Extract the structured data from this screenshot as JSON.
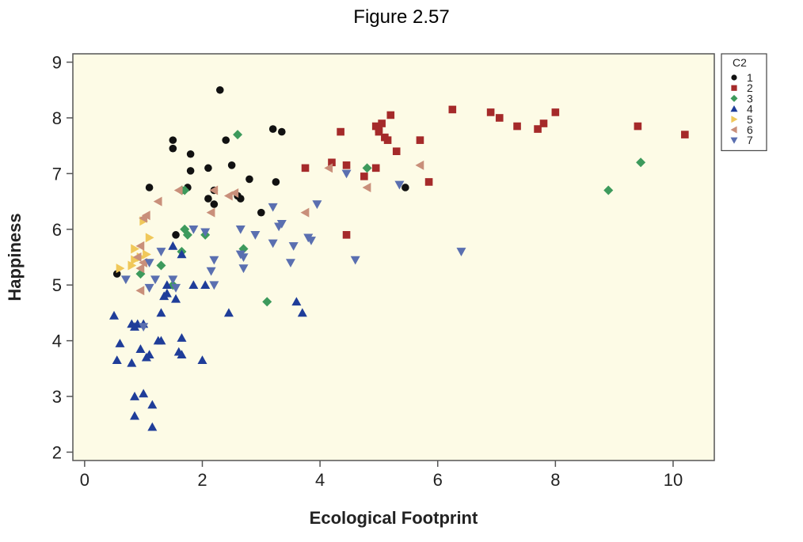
{
  "figure_label": "Figure 2.57",
  "chart_data": {
    "type": "scatter",
    "xlabel": "Ecological Footprint",
    "ylabel": "Happiness",
    "xlim": [
      -0.2,
      10.7
    ],
    "ylim": [
      1.85,
      9.15
    ],
    "xticks": [
      0,
      2,
      4,
      6,
      8,
      10
    ],
    "yticks": [
      2,
      3,
      4,
      5,
      6,
      7,
      8,
      9
    ],
    "grid": false,
    "plot_background": "#fdfbe6",
    "legend": {
      "title": "C2",
      "position": "top-right"
    },
    "series": [
      {
        "name": "1",
        "marker": "circle",
        "color": "#111111",
        "x": [
          2.3,
          1.5,
          1.5,
          1.8,
          1.8,
          2.4,
          2.1,
          2.5,
          3.2,
          3.35,
          1.1,
          1.75,
          2.2,
          2.1,
          2.8,
          3.25,
          2.2,
          2.6,
          2.65,
          1.65,
          1.55,
          3.0,
          5.45,
          0.55
        ],
        "y": [
          8.5,
          7.6,
          7.45,
          7.35,
          7.05,
          7.6,
          7.1,
          7.15,
          7.8,
          7.75,
          6.75,
          6.75,
          6.7,
          6.55,
          6.9,
          6.85,
          6.45,
          6.6,
          6.55,
          6.7,
          5.9,
          6.3,
          6.75,
          5.2
        ]
      },
      {
        "name": "2",
        "marker": "square",
        "color": "#a52a2a",
        "x": [
          6.25,
          6.9,
          7.05,
          7.35,
          7.7,
          7.8,
          8.0,
          9.4,
          10.2,
          5.2,
          4.95,
          5.0,
          5.05,
          5.1,
          5.0,
          5.15,
          5.3,
          5.7,
          4.35,
          3.75,
          4.2,
          4.45,
          4.95,
          4.75,
          5.85,
          4.45
        ],
        "y": [
          8.15,
          8.1,
          8.0,
          7.85,
          7.8,
          7.9,
          8.1,
          7.85,
          7.7,
          8.05,
          7.85,
          7.75,
          7.9,
          7.65,
          7.8,
          7.6,
          7.4,
          7.6,
          7.75,
          7.1,
          7.2,
          7.15,
          7.1,
          6.95,
          6.85,
          5.9
        ]
      },
      {
        "name": "3",
        "marker": "diamond",
        "color": "#3d9a5c",
        "x": [
          2.6,
          1.65,
          1.7,
          4.8,
          9.45,
          8.9,
          2.05,
          1.7,
          1.75,
          2.7,
          1.65,
          1.3,
          1.5,
          0.95,
          3.1
        ],
        "y": [
          7.7,
          6.7,
          6.7,
          7.1,
          7.2,
          6.7,
          5.9,
          6.0,
          5.9,
          5.65,
          5.6,
          5.35,
          5.0,
          5.2,
          4.7
        ]
      },
      {
        "name": "4",
        "marker": "triangle-up",
        "color": "#1f3d99",
        "x": [
          1.5,
          1.65,
          1.85,
          2.05,
          1.4,
          1.4,
          1.35,
          1.55,
          1.3,
          1.25,
          1.65,
          1.3,
          1.6,
          2.45,
          3.6,
          3.7,
          0.5,
          0.8,
          0.9,
          0.85,
          1.0,
          0.6,
          0.95,
          1.1,
          1.05,
          0.55,
          0.8,
          2.0,
          1.65,
          0.85,
          1.0,
          1.15,
          0.85,
          1.15
        ],
        "y": [
          5.7,
          5.55,
          5.0,
          5.0,
          5.0,
          4.85,
          4.8,
          4.75,
          4.5,
          4.0,
          4.05,
          4.0,
          3.8,
          4.5,
          4.7,
          4.5,
          4.45,
          4.3,
          4.3,
          4.25,
          4.3,
          3.95,
          3.85,
          3.75,
          3.7,
          3.65,
          3.6,
          3.65,
          3.75,
          3.0,
          3.05,
          2.85,
          2.65,
          2.45
        ]
      },
      {
        "name": "5",
        "marker": "triangle-right",
        "color": "#f0c85a",
        "x": [
          1.0,
          1.1,
          0.85,
          0.85,
          0.95,
          0.6,
          0.8,
          1.05
        ],
        "y": [
          6.15,
          5.85,
          5.65,
          5.45,
          5.5,
          5.3,
          5.35,
          5.55
        ]
      },
      {
        "name": "6",
        "marker": "triangle-left",
        "color": "#c98f7a",
        "x": [
          4.15,
          5.7,
          2.55,
          2.45,
          2.2,
          2.15,
          1.25,
          1.05,
          1.0,
          0.95,
          0.9,
          0.95,
          0.95,
          1.0,
          3.75,
          4.8,
          1.6
        ],
        "y": [
          7.1,
          7.15,
          6.65,
          6.6,
          6.7,
          6.3,
          6.5,
          6.25,
          6.2,
          5.7,
          5.5,
          5.3,
          4.9,
          5.4,
          6.3,
          6.75,
          6.7
        ]
      },
      {
        "name": "7",
        "marker": "triangle-down",
        "color": "#5a6fb0",
        "x": [
          4.45,
          5.35,
          3.95,
          3.2,
          3.35,
          3.3,
          2.65,
          2.9,
          2.7,
          3.2,
          3.55,
          3.5,
          3.8,
          3.85,
          4.6,
          6.4,
          2.05,
          1.85,
          2.2,
          2.65,
          2.7,
          2.15,
          2.2,
          1.3,
          1.5,
          1.55,
          1.1,
          1.2,
          1.1,
          1.0,
          0.7
        ],
        "y": [
          7.0,
          6.8,
          6.45,
          6.4,
          6.1,
          6.05,
          6.0,
          5.9,
          5.5,
          5.75,
          5.7,
          5.4,
          5.85,
          5.8,
          5.45,
          5.6,
          5.95,
          6.0,
          5.45,
          5.55,
          5.3,
          5.25,
          5.0,
          5.6,
          5.1,
          4.95,
          5.4,
          5.1,
          4.95,
          4.25,
          5.1
        ]
      }
    ]
  }
}
